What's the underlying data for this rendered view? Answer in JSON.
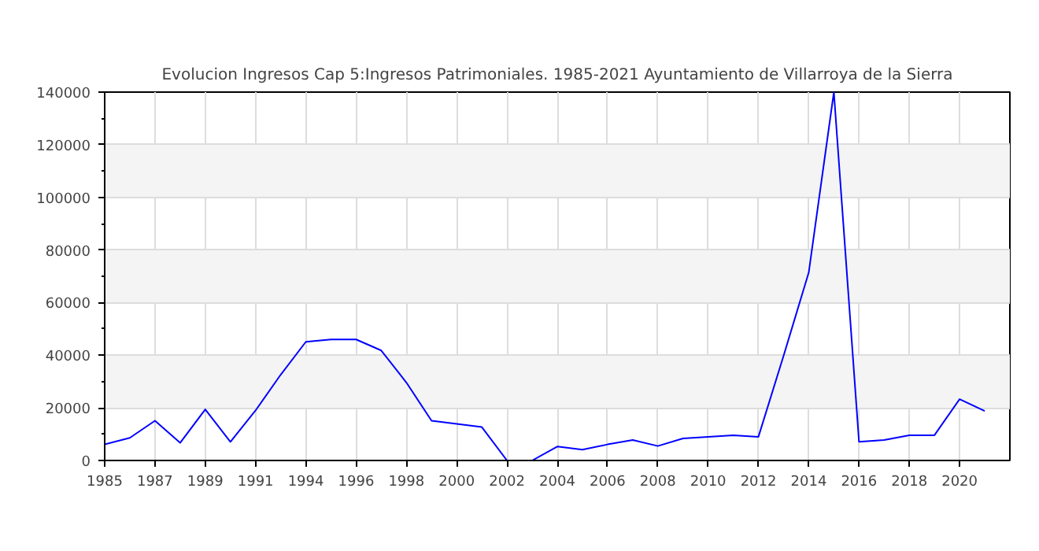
{
  "chart_data": {
    "type": "line",
    "title": "Evolucion Ingresos Cap 5:Ingresos Patrimoniales. 1985-2021 Ayuntamiento de Villarroya de la Sierra",
    "categories": [
      "1985",
      null,
      "1987",
      null,
      "1989",
      null,
      "1991",
      null,
      "1994",
      null,
      "1996",
      null,
      "1998",
      null,
      "2000",
      null,
      "2002",
      null,
      "2004",
      null,
      "2006",
      null,
      "2008",
      null,
      "2010",
      null,
      "2012",
      null,
      "2014",
      null,
      "2016",
      null,
      "2018",
      null,
      "2020",
      null
    ],
    "series": [
      {
        "color": "#0000ff",
        "values": [
          6100,
          8600,
          15100,
          6700,
          19400,
          7100,
          19000,
          32600,
          45100,
          46000,
          46000,
          41800,
          29600,
          15100,
          13900,
          12700,
          0,
          0,
          5300,
          4100,
          6100,
          7800,
          5500,
          8400,
          9000,
          9600,
          9000,
          39800,
          71400,
          140000,
          7100,
          7800,
          9600,
          9600,
          23300,
          18800
        ]
      }
    ],
    "ylim": [
      0,
      140000
    ],
    "yticks": [
      0,
      20000,
      40000,
      60000,
      80000,
      100000,
      120000,
      140000
    ],
    "grid": true,
    "marker": "none",
    "line_style": "solid"
  }
}
